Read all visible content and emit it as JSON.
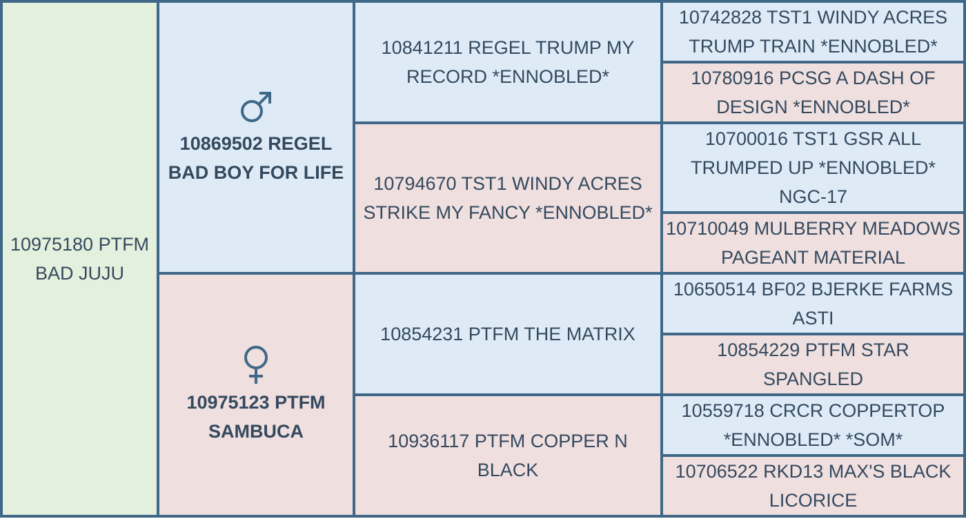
{
  "subject": {
    "name": "10975180 PTFM BAD JUJU"
  },
  "sire": {
    "icon": "male-symbol-icon",
    "name": "10869502 REGEL BAD BOY FOR LIFE",
    "sire": {
      "name": "10841211 REGEL TRUMP MY RECORD *ENNOBLED*",
      "sire": {
        "name": "10742828 TST1 WINDY ACRES TRUMP TRAIN *ENNOBLED*"
      },
      "dam": {
        "name": "10780916 PCSG A DASH OF DESIGN *ENNOBLED*"
      }
    },
    "dam": {
      "name": "10794670 TST1 WINDY ACRES STRIKE MY FANCY *ENNOBLED*",
      "sire": {
        "name": "10700016 TST1 GSR ALL TRUMPED UP *ENNOBLED* NGC-17"
      },
      "dam": {
        "name": "10710049 MULBERRY MEADOWS PAGEANT MATERIAL"
      }
    }
  },
  "dam": {
    "icon": "female-symbol-icon",
    "name": "10975123 PTFM SAMBUCA",
    "sire": {
      "name": "10854231 PTFM THE MATRIX",
      "sire": {
        "name": "10650514 BF02 BJERKE FARMS ASTI"
      },
      "dam": {
        "name": "10854229 PTFM STAR SPANGLED"
      }
    },
    "dam": {
      "name": "10936117 PTFM COPPER N BLACK",
      "sire": {
        "name": "10559718 CRCR COPPERTOP *ENNOBLED* *SOM*"
      },
      "dam": {
        "name": "10706522 RKD13 MAX'S BLACK LICORICE"
      }
    }
  },
  "colors": {
    "subject_bg": "#e3f0dd",
    "male_bg": "#deebf7",
    "female_bg": "#efdfdf",
    "border": "#3f6787",
    "text": "#34495e"
  }
}
